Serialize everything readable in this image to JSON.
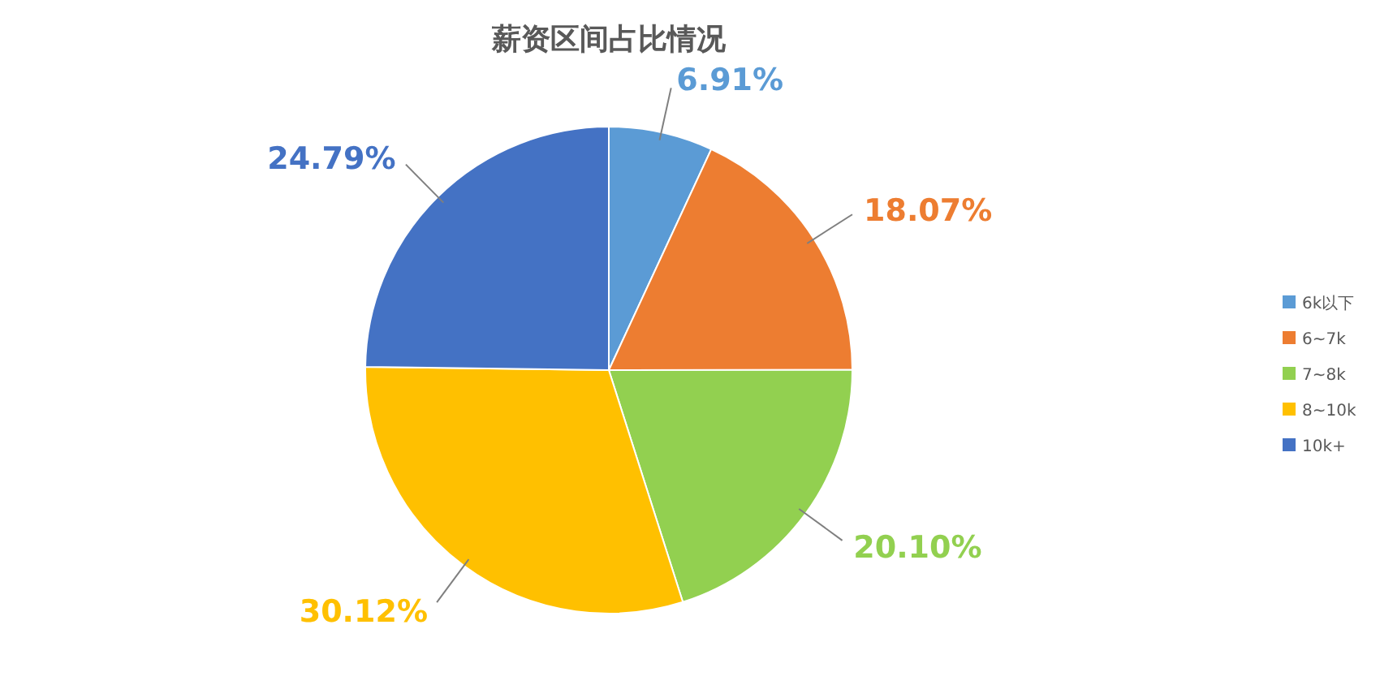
{
  "chart_data": {
    "type": "pie",
    "title": "薪资区间占比情况",
    "categories": [
      "6k以下",
      "6~7k",
      "7~8k",
      "8~10k",
      "10k+"
    ],
    "values": [
      6.91,
      18.07,
      20.1,
      30.12,
      24.79
    ],
    "value_labels": [
      "6.91%",
      "18.07%",
      "20.10%",
      "30.12%",
      "24.79%"
    ],
    "colors": [
      "#5b9bd5",
      "#ed7d31",
      "#92d050",
      "#ffc000",
      "#4472c4"
    ],
    "legend": "right"
  }
}
